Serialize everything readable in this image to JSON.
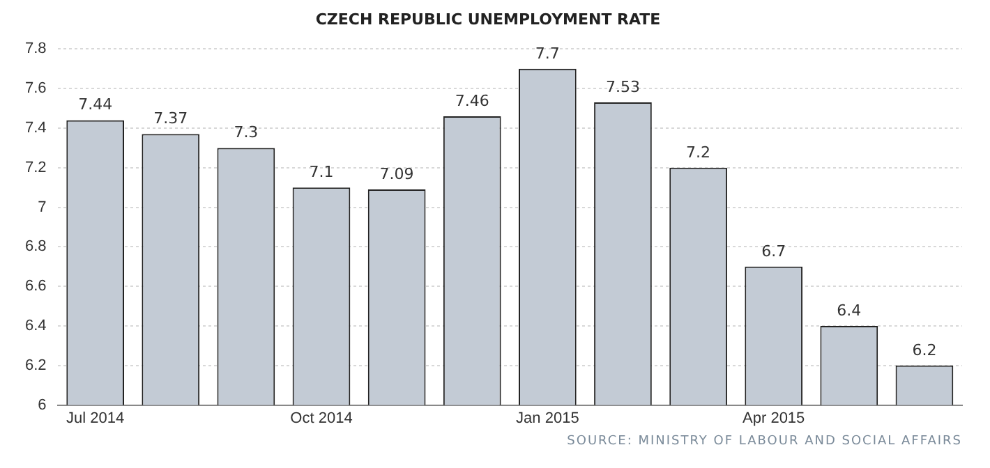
{
  "chart_data": {
    "type": "bar",
    "title": "CZECH REPUBLIC UNEMPLOYMENT RATE",
    "categories": [
      "Jul 2014",
      null,
      null,
      "Oct 2014",
      null,
      null,
      "Jan 2015",
      null,
      null,
      "Apr 2015",
      null,
      null
    ],
    "values": [
      7.44,
      7.37,
      7.3,
      7.1,
      7.09,
      7.46,
      7.7,
      7.53,
      7.2,
      6.7,
      6.4,
      6.2
    ],
    "color": "#c3cbd5",
    "ylim": [
      6,
      7.8
    ],
    "yticks": [
      6,
      6.2,
      6.4,
      6.6,
      6.8,
      7,
      7.2,
      7.4,
      7.6,
      7.8
    ],
    "grid": "y",
    "data_labels": true,
    "annotations": [
      "SOURCE: MINISTRY OF LABOUR AND SOCIAL AFFAIRS"
    ]
  }
}
